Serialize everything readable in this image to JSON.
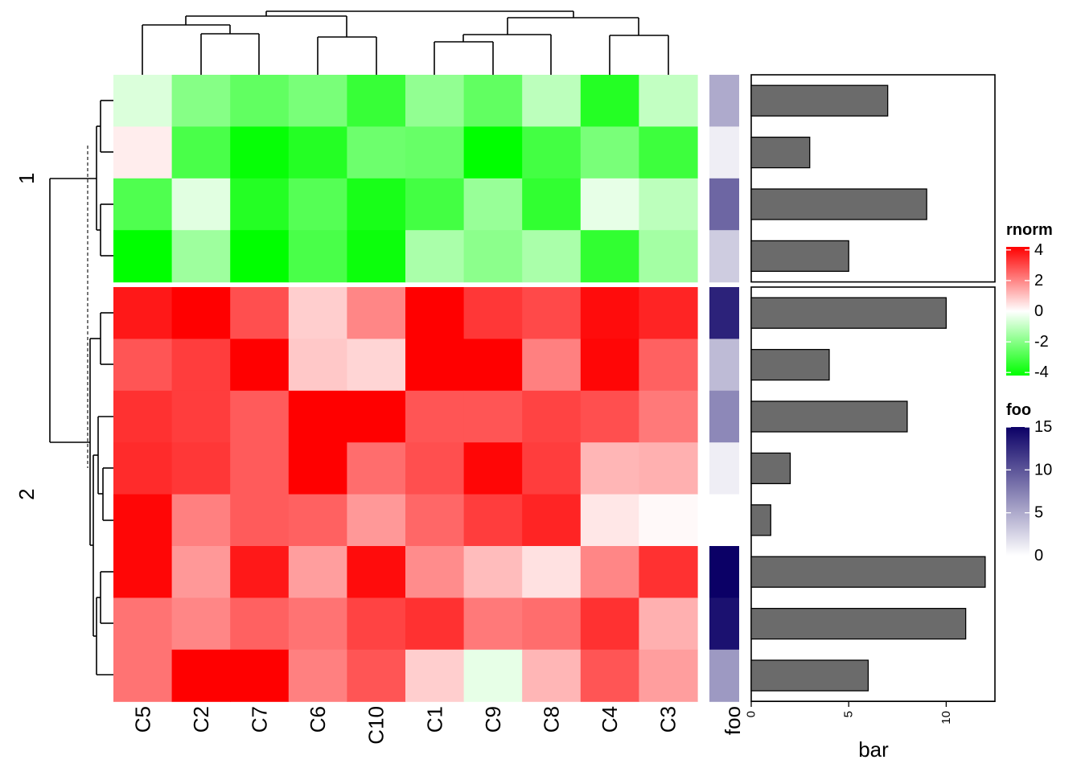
{
  "chart_data": {
    "type": "heatmap",
    "columns": [
      "C5",
      "C2",
      "C7",
      "C6",
      "C10",
      "C1",
      "C9",
      "C8",
      "C4",
      "C3"
    ],
    "row_slices": [
      {
        "name": "1",
        "values": [
          [
            -0.6,
            -2.0,
            -2.6,
            -2.2,
            -3.3,
            -1.8,
            -2.6,
            -1.1,
            -3.6,
            -1.0
          ],
          [
            0.3,
            -3.0,
            -4.1,
            -3.6,
            -2.4,
            -2.5,
            -4.3,
            -3.1,
            -2.2,
            -3.2
          ],
          [
            -2.9,
            -0.5,
            -3.6,
            -2.8,
            -3.8,
            -3.1,
            -1.7,
            -3.4,
            -0.4,
            -1.1
          ],
          [
            -4.2,
            -1.6,
            -4.2,
            -3.0,
            -4.0,
            -1.4,
            -1.9,
            -1.4,
            -3.4,
            -1.5
          ]
        ],
        "foo": [
          5,
          1,
          9,
          3
        ],
        "bar": [
          7,
          3,
          9,
          5
        ]
      },
      {
        "name": "2",
        "values": [
          [
            3.8,
            4.2,
            2.9,
            0.8,
            2.0,
            4.2,
            3.3,
            3.0,
            4.0,
            3.6
          ],
          [
            2.8,
            3.2,
            4.2,
            0.9,
            0.7,
            4.2,
            4.2,
            2.1,
            4.1,
            2.6
          ],
          [
            3.4,
            3.2,
            2.7,
            4.2,
            4.2,
            2.8,
            2.8,
            3.1,
            2.9,
            2.2
          ],
          [
            3.5,
            3.3,
            2.7,
            4.2,
            2.4,
            2.9,
            4.1,
            3.2,
            1.2,
            1.3
          ],
          [
            4.1,
            2.1,
            2.7,
            2.6,
            1.7,
            2.5,
            3.2,
            3.6,
            0.4,
            0.1
          ],
          [
            4.1,
            1.7,
            3.8,
            1.6,
            4.0,
            1.9,
            1.1,
            0.5,
            2.0,
            3.4
          ],
          [
            2.3,
            2.0,
            2.6,
            2.3,
            3.1,
            3.4,
            2.2,
            2.4,
            3.4,
            1.3
          ],
          [
            2.3,
            4.2,
            4.2,
            2.1,
            2.8,
            0.8,
            -0.4,
            1.2,
            2.8,
            1.6
          ]
        ],
        "foo": [
          13,
          4,
          7,
          1,
          0,
          15,
          14,
          6
        ],
        "bar": [
          10,
          4,
          8,
          2,
          1,
          12,
          11,
          6
        ]
      }
    ],
    "legend_rnorm": {
      "title": "rnorm",
      "ticks": [
        4,
        2,
        0,
        -2,
        -4
      ],
      "range": [
        -4.2,
        4.2
      ],
      "colors": {
        "low": "#00ff00",
        "mid": "#ffffff",
        "high": "#ff0000"
      }
    },
    "legend_foo": {
      "title": "foo",
      "ticks": [
        15,
        10,
        5,
        0
      ],
      "range": [
        0,
        15
      ],
      "colors": {
        "low": "#ffffff",
        "high": "#0b0066"
      }
    },
    "foo_label": "foo",
    "bar_axis": {
      "label": "bar",
      "ticks": [
        0,
        5,
        10
      ],
      "range": [
        0,
        12.5
      ],
      "bar_color": "#6b6b6b"
    }
  }
}
